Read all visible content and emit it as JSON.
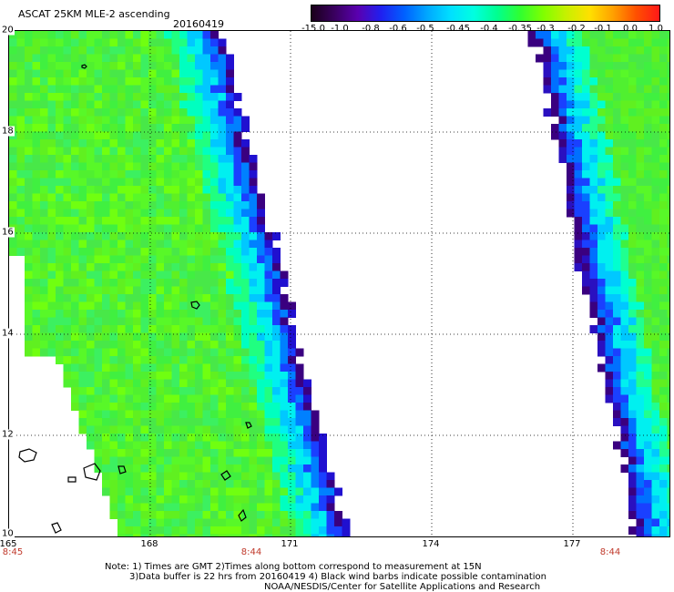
{
  "header": {
    "title": "ASCAT 25KM MLE-2 ascending",
    "date": "20160419"
  },
  "colorbar": {
    "labels": [
      "-15.0",
      "-1.0",
      "-0.8",
      "-0.6",
      "-0.5",
      "-0.45",
      "-0.4",
      "-0.35",
      "-0.3",
      "-0.2",
      "-0.1",
      "0.0",
      "1.0"
    ],
    "colors": [
      "#2a0030",
      "#4a0090",
      "#3a20e0",
      "#2a60ff",
      "#20a8ff",
      "#00e8ff",
      "#00ffd8",
      "#10f090",
      "#40ff20",
      "#a0ff00",
      "#f0f000",
      "#ffa000",
      "#ff4020"
    ]
  },
  "map": {
    "lat_labels": [
      "20",
      "18",
      "16",
      "14",
      "12",
      "10"
    ],
    "lon_labels": [
      "165",
      "168",
      "171",
      "174",
      "177"
    ],
    "time_labels": [
      "8:45",
      "8:44",
      "8:44"
    ]
  },
  "footer": {
    "line1": "Note: 1) Times are GMT 2)Times along bottom correspond to measurement at 15N",
    "line2": "3)Data buffer is 22 hrs from 20160419 4) Black wind barbs indicate possible contamination",
    "line3": "NOAA/NESDIS/Center for Satellite Applications and Research"
  }
}
